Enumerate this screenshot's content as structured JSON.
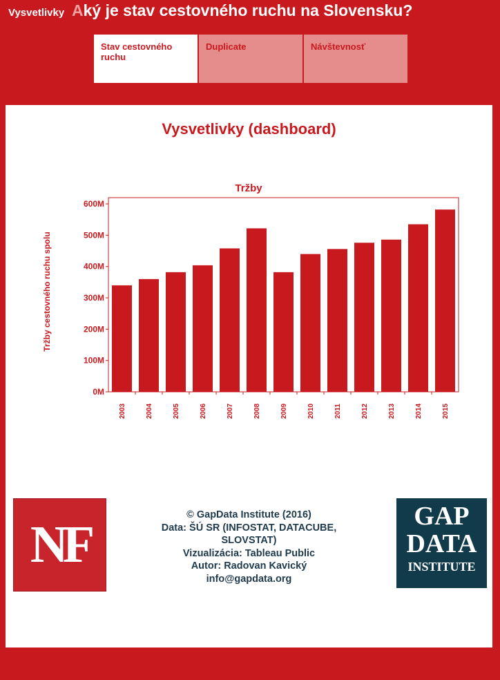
{
  "header": {
    "brand": "Vysvetlivky",
    "title_first_letter": "A",
    "title_rest": "ký je stav cestovného ruchu na Slovensku?"
  },
  "tabs": [
    {
      "label": "Stav cestovného ruchu",
      "active": true
    },
    {
      "label": "Duplicate",
      "active": false
    },
    {
      "label": "Návštevnosť",
      "active": false
    }
  ],
  "dashboard": {
    "title": "Vysvetlivky (dashboard)"
  },
  "chart_data": {
    "type": "bar",
    "title": "Tržby",
    "ylabel": "Tržby cestovného ruchu spolu",
    "xlabel": "",
    "categories": [
      "2003",
      "2004",
      "2005",
      "2006",
      "2007",
      "2008",
      "2009",
      "2010",
      "2011",
      "2012",
      "2013",
      "2014",
      "2015"
    ],
    "values": [
      340,
      360,
      382,
      404,
      458,
      522,
      382,
      440,
      456,
      476,
      486,
      535,
      582
    ],
    "value_unit": "M",
    "ylim": [
      0,
      620
    ],
    "yticks": [
      0,
      100,
      200,
      300,
      400,
      500,
      600
    ],
    "ytick_labels": [
      "0M",
      "100M",
      "200M",
      "300M",
      "400M",
      "500M",
      "600M"
    ],
    "bar_color": "#c8191e",
    "grid": false
  },
  "footer": {
    "logo_left": "NF",
    "credits": [
      "© GapData Institute (2016)",
      "Data: ŠÚ SR (INFOSTAT, DATACUBE,",
      "SLOVSTAT)",
      "Vizualizácia: Tableau Public",
      "Autor: Radovan Kavický",
      "info@gapdata.org"
    ],
    "logo_right": [
      "GAP",
      "DATA",
      "INSTITUTE"
    ]
  },
  "colors": {
    "brand_red": "#c8191e",
    "tab_inactive": "#e58c8c",
    "navy": "#113b4a"
  }
}
